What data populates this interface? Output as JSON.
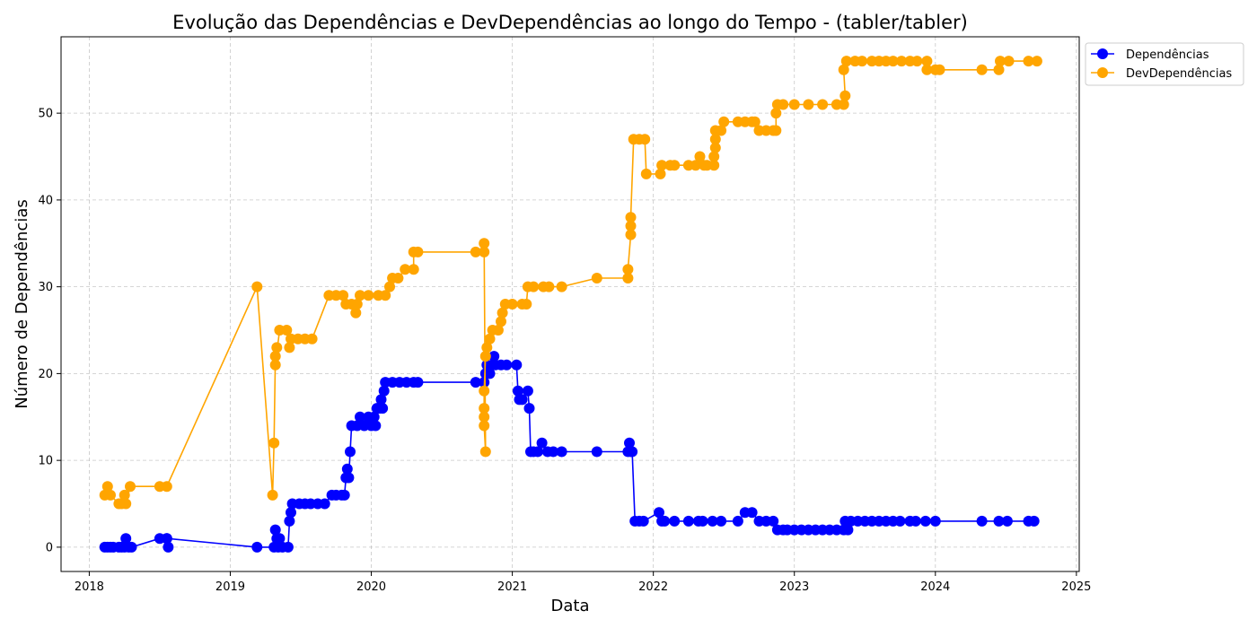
{
  "chart_data": {
    "type": "line",
    "title": "Evolução das Dependências e DevDependências ao longo do Tempo - (tabler/tabler)",
    "xlabel": "Data",
    "ylabel": "Número de Dependências",
    "xlim": [
      2017.8,
      2025.02
    ],
    "ylim": [
      -2.8,
      58.8
    ],
    "x_ticks": [
      2018,
      2019,
      2020,
      2021,
      2022,
      2023,
      2024,
      2025
    ],
    "y_ticks": [
      0,
      10,
      20,
      30,
      40,
      50
    ],
    "grid": true,
    "legend_position": "upper-right outside",
    "series": [
      {
        "name": "Dependências",
        "color": "#0000ff",
        "points": [
          [
            2018.11,
            0
          ],
          [
            2018.13,
            0
          ],
          [
            2018.15,
            0
          ],
          [
            2018.17,
            0
          ],
          [
            2018.21,
            0
          ],
          [
            2018.23,
            0
          ],
          [
            2018.25,
            0
          ],
          [
            2018.26,
            1
          ],
          [
            2018.28,
            0
          ],
          [
            2018.3,
            0
          ],
          [
            2018.5,
            1
          ],
          [
            2018.55,
            1
          ],
          [
            2018.56,
            0
          ],
          [
            2018.55,
            1
          ],
          [
            2019.19,
            0
          ],
          [
            2019.31,
            0
          ],
          [
            2019.32,
            2
          ],
          [
            2019.33,
            1
          ],
          [
            2019.34,
            0
          ],
          [
            2019.35,
            1
          ],
          [
            2019.37,
            0
          ],
          [
            2019.41,
            0
          ],
          [
            2019.42,
            3
          ],
          [
            2019.43,
            4
          ],
          [
            2019.44,
            5
          ],
          [
            2019.49,
            5
          ],
          [
            2019.53,
            5
          ],
          [
            2019.57,
            5
          ],
          [
            2019.62,
            5
          ],
          [
            2019.67,
            5
          ],
          [
            2019.72,
            6
          ],
          [
            2019.75,
            6
          ],
          [
            2019.79,
            6
          ],
          [
            2019.81,
            6
          ],
          [
            2019.82,
            8
          ],
          [
            2019.83,
            9
          ],
          [
            2019.84,
            8
          ],
          [
            2019.85,
            11
          ],
          [
            2019.86,
            14
          ],
          [
            2019.9,
            14
          ],
          [
            2019.92,
            15
          ],
          [
            2019.95,
            14
          ],
          [
            2019.98,
            15
          ],
          [
            2020.0,
            14
          ],
          [
            2020.02,
            15
          ],
          [
            2020.03,
            14
          ],
          [
            2020.04,
            16
          ],
          [
            2020.06,
            16
          ],
          [
            2020.07,
            17
          ],
          [
            2020.08,
            16
          ],
          [
            2020.09,
            18
          ],
          [
            2020.1,
            19
          ],
          [
            2020.15,
            19
          ],
          [
            2020.2,
            19
          ],
          [
            2020.25,
            19
          ],
          [
            2020.3,
            19
          ],
          [
            2020.33,
            19
          ],
          [
            2020.74,
            19
          ],
          [
            2020.8,
            19
          ],
          [
            2020.81,
            20
          ],
          [
            2020.82,
            21
          ],
          [
            2020.84,
            20
          ],
          [
            2020.86,
            21
          ],
          [
            2020.87,
            22
          ],
          [
            2020.88,
            21
          ],
          [
            2020.92,
            21
          ],
          [
            2020.96,
            21
          ],
          [
            2021.03,
            21
          ],
          [
            2021.04,
            18
          ],
          [
            2021.05,
            17
          ],
          [
            2021.07,
            17
          ],
          [
            2021.11,
            18
          ],
          [
            2021.12,
            16
          ],
          [
            2021.13,
            11
          ],
          [
            2021.15,
            11
          ],
          [
            2021.18,
            11
          ],
          [
            2021.21,
            12
          ],
          [
            2021.25,
            11
          ],
          [
            2021.29,
            11
          ],
          [
            2021.35,
            11
          ],
          [
            2021.6,
            11
          ],
          [
            2021.82,
            11
          ],
          [
            2021.83,
            12
          ],
          [
            2021.84,
            11
          ],
          [
            2021.85,
            11
          ],
          [
            2021.87,
            3
          ],
          [
            2021.9,
            3
          ],
          [
            2021.93,
            3
          ],
          [
            2022.04,
            4
          ],
          [
            2022.06,
            3
          ],
          [
            2022.08,
            3
          ],
          [
            2022.15,
            3
          ],
          [
            2022.25,
            3
          ],
          [
            2022.32,
            3
          ],
          [
            2022.35,
            3
          ],
          [
            2022.42,
            3
          ],
          [
            2022.48,
            3
          ],
          [
            2022.6,
            3
          ],
          [
            2022.65,
            4
          ],
          [
            2022.7,
            4
          ],
          [
            2022.75,
            3
          ],
          [
            2022.8,
            3
          ],
          [
            2022.85,
            3
          ],
          [
            2022.88,
            2
          ],
          [
            2022.92,
            2
          ],
          [
            2022.95,
            2
          ],
          [
            2023.0,
            2
          ],
          [
            2023.05,
            2
          ],
          [
            2023.1,
            2
          ],
          [
            2023.15,
            2
          ],
          [
            2023.2,
            2
          ],
          [
            2023.25,
            2
          ],
          [
            2023.3,
            2
          ],
          [
            2023.35,
            2
          ],
          [
            2023.36,
            3
          ],
          [
            2023.38,
            2
          ],
          [
            2023.4,
            3
          ],
          [
            2023.45,
            3
          ],
          [
            2023.5,
            3
          ],
          [
            2023.55,
            3
          ],
          [
            2023.6,
            3
          ],
          [
            2023.65,
            3
          ],
          [
            2023.7,
            3
          ],
          [
            2023.75,
            3
          ],
          [
            2023.82,
            3
          ],
          [
            2023.86,
            3
          ],
          [
            2023.93,
            3
          ],
          [
            2024.0,
            3
          ],
          [
            2024.33,
            3
          ],
          [
            2024.45,
            3
          ],
          [
            2024.51,
            3
          ],
          [
            2024.66,
            3
          ],
          [
            2024.7,
            3
          ]
        ]
      },
      {
        "name": "DevDependências",
        "color": "#ffa500",
        "points": [
          [
            2018.11,
            6
          ],
          [
            2018.13,
            7
          ],
          [
            2018.15,
            6
          ],
          [
            2018.21,
            5
          ],
          [
            2018.23,
            5
          ],
          [
            2018.25,
            6
          ],
          [
            2018.26,
            5
          ],
          [
            2018.29,
            7
          ],
          [
            2018.5,
            7
          ],
          [
            2018.55,
            7
          ],
          [
            2019.19,
            30
          ],
          [
            2019.3,
            6
          ],
          [
            2019.31,
            12
          ],
          [
            2019.32,
            22
          ],
          [
            2019.33,
            23
          ],
          [
            2019.32,
            21
          ],
          [
            2019.35,
            25
          ],
          [
            2019.4,
            25
          ],
          [
            2019.42,
            23
          ],
          [
            2019.43,
            24
          ],
          [
            2019.48,
            24
          ],
          [
            2019.53,
            24
          ],
          [
            2019.58,
            24
          ],
          [
            2019.7,
            29
          ],
          [
            2019.75,
            29
          ],
          [
            2019.8,
            29
          ],
          [
            2019.82,
            28
          ],
          [
            2019.86,
            28
          ],
          [
            2019.89,
            27
          ],
          [
            2019.9,
            28
          ],
          [
            2019.92,
            29
          ],
          [
            2019.98,
            29
          ],
          [
            2020.05,
            29
          ],
          [
            2020.1,
            29
          ],
          [
            2020.13,
            30
          ],
          [
            2020.15,
            31
          ],
          [
            2020.19,
            31
          ],
          [
            2020.24,
            32
          ],
          [
            2020.3,
            32
          ],
          [
            2020.3,
            34
          ],
          [
            2020.33,
            34
          ],
          [
            2020.74,
            34
          ],
          [
            2020.8,
            34
          ],
          [
            2020.8,
            35
          ],
          [
            2020.81,
            11
          ],
          [
            2020.8,
            14
          ],
          [
            2020.8,
            15
          ],
          [
            2020.8,
            16
          ],
          [
            2020.8,
            18
          ],
          [
            2020.81,
            22
          ],
          [
            2020.82,
            23
          ],
          [
            2020.84,
            24
          ],
          [
            2020.86,
            25
          ],
          [
            2020.9,
            25
          ],
          [
            2020.92,
            26
          ],
          [
            2020.93,
            27
          ],
          [
            2020.95,
            28
          ],
          [
            2021.0,
            28
          ],
          [
            2021.07,
            28
          ],
          [
            2021.1,
            28
          ],
          [
            2021.11,
            30
          ],
          [
            2021.15,
            30
          ],
          [
            2021.22,
            30
          ],
          [
            2021.26,
            30
          ],
          [
            2021.35,
            30
          ],
          [
            2021.6,
            31
          ],
          [
            2021.82,
            31
          ],
          [
            2021.82,
            32
          ],
          [
            2021.84,
            36
          ],
          [
            2021.84,
            37
          ],
          [
            2021.84,
            38
          ],
          [
            2021.86,
            47
          ],
          [
            2021.9,
            47
          ],
          [
            2021.94,
            47
          ],
          [
            2021.95,
            43
          ],
          [
            2022.05,
            43
          ],
          [
            2022.06,
            44
          ],
          [
            2022.12,
            44
          ],
          [
            2022.15,
            44
          ],
          [
            2022.25,
            44
          ],
          [
            2022.3,
            44
          ],
          [
            2022.33,
            45
          ],
          [
            2022.36,
            44
          ],
          [
            2022.38,
            44
          ],
          [
            2022.43,
            44
          ],
          [
            2022.43,
            45
          ],
          [
            2022.44,
            46
          ],
          [
            2022.44,
            47
          ],
          [
            2022.44,
            48
          ],
          [
            2022.48,
            48
          ],
          [
            2022.5,
            49
          ],
          [
            2022.6,
            49
          ],
          [
            2022.65,
            49
          ],
          [
            2022.7,
            49
          ],
          [
            2022.72,
            49
          ],
          [
            2022.75,
            48
          ],
          [
            2022.8,
            48
          ],
          [
            2022.85,
            48
          ],
          [
            2022.87,
            48
          ],
          [
            2022.87,
            50
          ],
          [
            2022.88,
            51
          ],
          [
            2022.92,
            51
          ],
          [
            2023.0,
            51
          ],
          [
            2023.1,
            51
          ],
          [
            2023.2,
            51
          ],
          [
            2023.3,
            51
          ],
          [
            2023.35,
            51
          ],
          [
            2023.36,
            52
          ],
          [
            2023.35,
            55
          ],
          [
            2023.37,
            56
          ],
          [
            2023.43,
            56
          ],
          [
            2023.48,
            56
          ],
          [
            2023.55,
            56
          ],
          [
            2023.6,
            56
          ],
          [
            2023.65,
            56
          ],
          [
            2023.7,
            56
          ],
          [
            2023.76,
            56
          ],
          [
            2023.82,
            56
          ],
          [
            2023.87,
            56
          ],
          [
            2023.94,
            56
          ],
          [
            2023.94,
            55
          ],
          [
            2024.0,
            55
          ],
          [
            2024.03,
            55
          ],
          [
            2024.33,
            55
          ],
          [
            2024.45,
            55
          ],
          [
            2024.46,
            56
          ],
          [
            2024.52,
            56
          ],
          [
            2024.66,
            56
          ],
          [
            2024.72,
            56
          ]
        ]
      }
    ]
  }
}
